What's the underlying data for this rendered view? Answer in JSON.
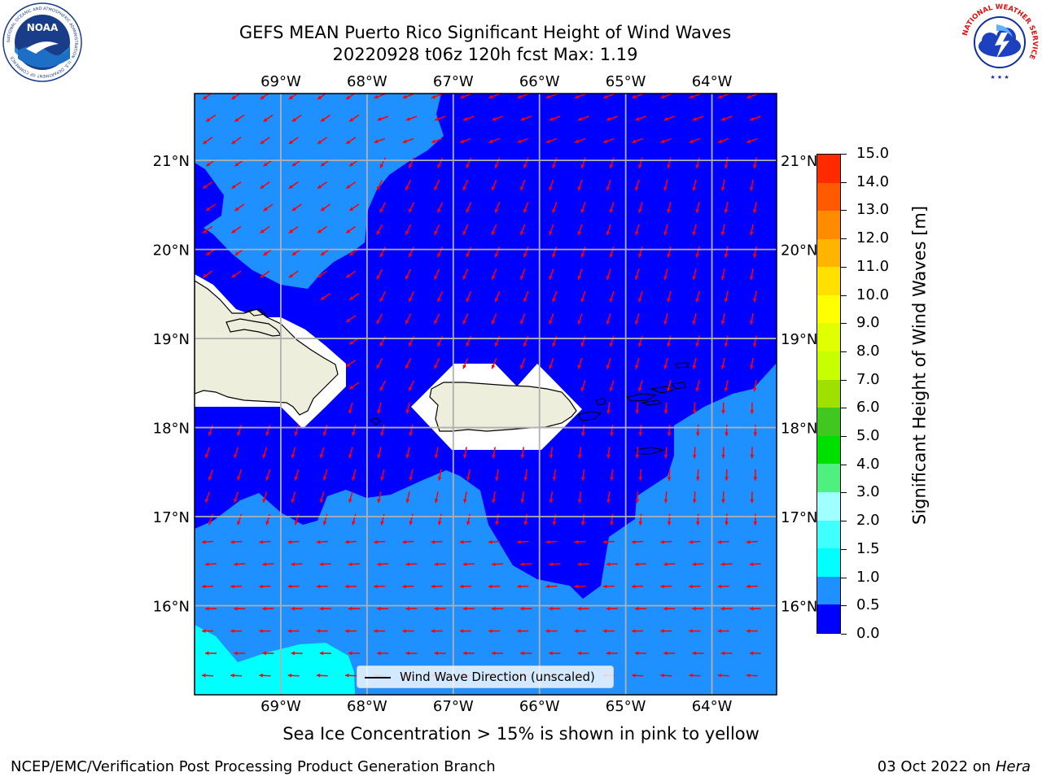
{
  "header": {
    "title_line1": "GEFS MEAN Puerto Rico Significant Height of Wind Waves",
    "title_line2": "20220928 t06z 120h fcst   Max: 1.19"
  },
  "logos": {
    "noaa": "NOAA",
    "noaa_ring_text": "NATIONAL OCEANIC AND ATMOSPHERIC ADMINISTRATION · U.S. DEPARTMENT OF COMMERCE",
    "nws_ring_text": "NATIONAL WEATHER SERVICE"
  },
  "map": {
    "lon_min": -70.0,
    "lon_max": -63.25,
    "lat_min": 15.0,
    "lat_max": 21.75,
    "lon_ticks": [
      "69°W",
      "68°W",
      "67°W",
      "66°W",
      "65°W",
      "64°W"
    ],
    "lon_values": [
      -69,
      -68,
      -67,
      -66,
      -65,
      -64
    ],
    "lat_ticks": [
      "21°N",
      "20°N",
      "19°N",
      "18°N",
      "17°N",
      "16°N"
    ],
    "lat_values": [
      21,
      20,
      19,
      18,
      17,
      16
    ],
    "grid": true,
    "colors": {
      "band_0_05": "#0000ff",
      "band_05_10": "#1e90ff",
      "band_10_15": "#00ffff",
      "land": "#eeeedc",
      "arrows": "#ff0000",
      "coast": "#000000"
    }
  },
  "legend": {
    "label": "Wind Wave Direction (unscaled)"
  },
  "colorbar": {
    "title": "Significant Height of Wind Waves [m]",
    "min": 0.0,
    "max": 15.0,
    "tick_labels": [
      "0.0",
      "0.5",
      "1.0",
      "1.5",
      "2.0",
      "3.0",
      "4.0",
      "5.0",
      "6.0",
      "7.0",
      "8.0",
      "9.0",
      "10.0",
      "11.0",
      "12.0",
      "13.0",
      "14.0",
      "15.0"
    ],
    "colors": [
      "#0000ff",
      "#1e90ff",
      "#00ffff",
      "#40ffff",
      "#a0ffff",
      "#50f080",
      "#00e000",
      "#40c820",
      "#a0e000",
      "#c8ff00",
      "#e0ff00",
      "#ffff00",
      "#ffe000",
      "#ffb400",
      "#ff8c00",
      "#ff5a00",
      "#ff2a00",
      "#ff0000"
    ]
  },
  "notes": {
    "sea_ice": "Sea Ice Concentration > 15% is shown in pink to yellow",
    "footer_left": "NCEP/EMC/Verification Post Processing Product Generation Branch",
    "footer_right_date": "03 Oct 2022 on ",
    "footer_right_machine": "Hera"
  }
}
